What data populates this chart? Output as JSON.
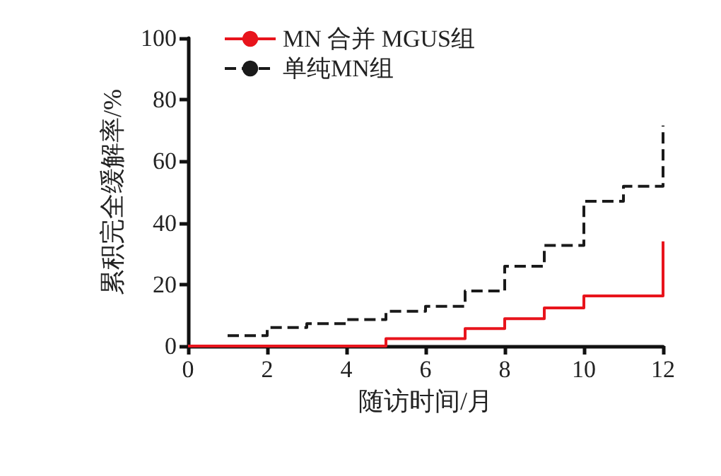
{
  "chart_data": {
    "type": "step",
    "xlabel": "随访时间/月",
    "ylabel": "累积完全缓解率/%",
    "xlim": [
      0,
      12
    ],
    "xticks": [
      0,
      2,
      4,
      6,
      8,
      10,
      12
    ],
    "ylim": [
      0,
      100
    ],
    "yticks": [
      0,
      20,
      40,
      60,
      80,
      100
    ],
    "grid": false,
    "legend": "top left",
    "marker": "none",
    "series": [
      {
        "name": "MN 合并 MGUS组",
        "color": "#e8141c",
        "line_style": "solid",
        "x": [
          0,
          5,
          7,
          8,
          9,
          10,
          12
        ],
        "values": [
          0,
          2.4,
          5.7,
          8.9,
          12.4,
          16.3,
          34
        ]
      },
      {
        "name": "单纯MN组",
        "color": "#1a1a1a",
        "line_style": "dashed",
        "x": [
          1,
          2,
          3,
          4,
          5,
          6,
          7,
          8,
          9,
          10,
          11,
          12
        ],
        "values": [
          3.4,
          6,
          7.3,
          8.6,
          11.3,
          12.9,
          17.9,
          25.9,
          32.7,
          47,
          51.9,
          71.6
        ]
      }
    ]
  }
}
